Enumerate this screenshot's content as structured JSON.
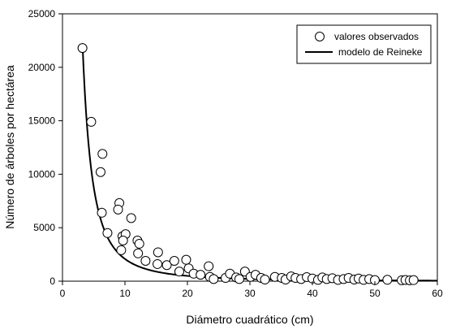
{
  "chart_data": {
    "type": "scatter",
    "xlabel": "Diámetro cuadrático (cm)",
    "ylabel": "Número de árboles por hectárea",
    "xlim": [
      0,
      60
    ],
    "ylim": [
      0,
      25000
    ],
    "x_ticks": [
      "0",
      "10",
      "20",
      "30",
      "40",
      "50",
      "60"
    ],
    "y_ticks": [
      "0",
      "5000",
      "10000",
      "15000",
      "20000",
      "25000"
    ],
    "grid": false,
    "legend_position": "top-right",
    "series": [
      {
        "name": "valores observados",
        "kind": "points",
        "marker": "open-circle",
        "points": [
          [
            3.2,
            21800
          ],
          [
            4.6,
            14900
          ],
          [
            6.4,
            11900
          ],
          [
            6.1,
            10200
          ],
          [
            6.3,
            6400
          ],
          [
            7.2,
            4500
          ],
          [
            9.1,
            7300
          ],
          [
            8.9,
            6700
          ],
          [
            11.0,
            5900
          ],
          [
            9.6,
            4200
          ],
          [
            10.1,
            4400
          ],
          [
            9.7,
            3800
          ],
          [
            9.4,
            2900
          ],
          [
            12.0,
            3800
          ],
          [
            12.3,
            3500
          ],
          [
            12.1,
            2600
          ],
          [
            13.3,
            1900
          ],
          [
            15.3,
            2700
          ],
          [
            15.2,
            1600
          ],
          [
            16.7,
            1500
          ],
          [
            17.9,
            1900
          ],
          [
            18.7,
            900
          ],
          [
            19.8,
            2000
          ],
          [
            20.2,
            1200
          ],
          [
            21.0,
            700
          ],
          [
            22.1,
            600
          ],
          [
            23.4,
            1400
          ],
          [
            23.6,
            400
          ],
          [
            24.2,
            200
          ],
          [
            26.1,
            300
          ],
          [
            26.8,
            700
          ],
          [
            27.8,
            350
          ],
          [
            28.3,
            200
          ],
          [
            29.2,
            900
          ],
          [
            30.1,
            400
          ],
          [
            30.9,
            600
          ],
          [
            31.8,
            300
          ],
          [
            32.4,
            150
          ],
          [
            34.0,
            400
          ],
          [
            35.1,
            300
          ],
          [
            35.7,
            150
          ],
          [
            36.6,
            450
          ],
          [
            37.3,
            300
          ],
          [
            38.2,
            200
          ],
          [
            39.1,
            380
          ],
          [
            40.0,
            250
          ],
          [
            40.9,
            120
          ],
          [
            41.6,
            350
          ],
          [
            42.3,
            200
          ],
          [
            43.2,
            280
          ],
          [
            44.1,
            120
          ],
          [
            45.0,
            200
          ],
          [
            45.8,
            300
          ],
          [
            46.7,
            150
          ],
          [
            47.4,
            250
          ],
          [
            48.2,
            120
          ],
          [
            49.1,
            200
          ],
          [
            50.0,
            100
          ],
          [
            52.0,
            130
          ],
          [
            54.3,
            90
          ],
          [
            54.9,
            110
          ],
          [
            55.6,
            80
          ],
          [
            56.2,
            100
          ]
        ]
      },
      {
        "name": "modelo de Reineke",
        "kind": "line",
        "model": "N = a * D^b",
        "x_range": [
          3.2,
          60
        ],
        "a": 250000,
        "b": -2.08
      }
    ]
  },
  "colors": {
    "axis": "#000000",
    "marker_stroke": "#000000",
    "marker_fill": "#ffffff",
    "line": "#000000",
    "background": "#ffffff"
  }
}
